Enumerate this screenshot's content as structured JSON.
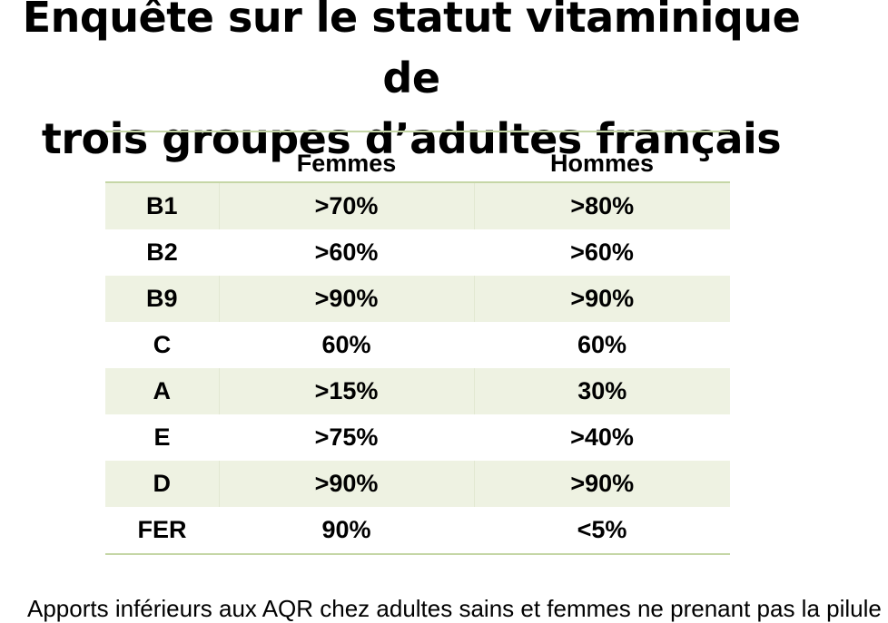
{
  "title": {
    "line1": "Enquête sur le statut vitaminique de",
    "line2": "trois groupes d’adultes français"
  },
  "table": {
    "headers": [
      "",
      "Femmes",
      "Hommes"
    ],
    "rows": [
      [
        "B1",
        ">70%",
        ">80%"
      ],
      [
        "B2",
        ">60%",
        ">60%"
      ],
      [
        "B9",
        ">90%",
        ">90%"
      ],
      [
        "C",
        "60%",
        "60%"
      ],
      [
        "A",
        ">15%",
        "30%"
      ],
      [
        "E",
        ">75%",
        ">40%"
      ],
      [
        "D",
        ">90%",
        ">90%"
      ],
      [
        "FER",
        "90%",
        "<5%"
      ]
    ]
  },
  "footer": {
    "text": "Apports inférieurs aux AQR chez adultes sains et femmes ne prenant pas la pilule"
  },
  "colors": {
    "row_shade": "#eef2e2",
    "rule": "#c5d6a6"
  }
}
